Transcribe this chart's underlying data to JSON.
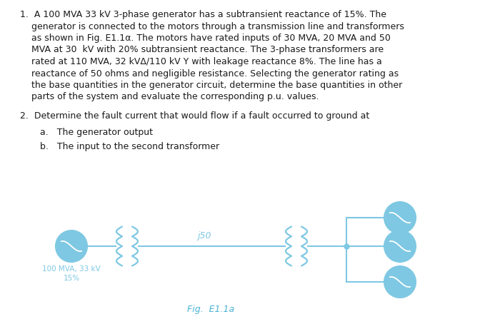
{
  "background_color": "#ffffff",
  "diagram_color": "#7ec8e3",
  "text_color": "#1a1a1a",
  "fig_label_color": "#4ab3d4",
  "paragraph1": "1.  A 100 MVA 33 kV 3-phase generator has a subtransient reactance of 15%. The\n    generator is connected to the motors through a transmission line and transformers\n    as shown in Fig. E1.1α. The motors have rated inputs of 30 MVA, 20 MVA and 50\n    MVA at 30  kV with 20% subtransient reactance. The 3-phase transformers are\n    rated at 110 MVA, 32 kVΔ/110 kV Y with leakage reactance 8%. The line has a\n    reactance of 50 ohms and negligible resistance. Selecting the generator rating as\n    the base quantities in the generator circuit, determine the base quantities in other\n    parts of the system and evaluate the corresponding p.u. values.",
  "paragraph2": "2.  Determine the fault current that would flow if a fault occurred to ground at",
  "item_a": "a.   The generator output",
  "item_b": "b.   The input to the second transformer",
  "label_line": "j50",
  "label_fig": "Fig.  E1.1a",
  "text_fontsize": 9.0,
  "fig_label_fontsize": 9.0,
  "gen_label_fontsize": 7.5
}
